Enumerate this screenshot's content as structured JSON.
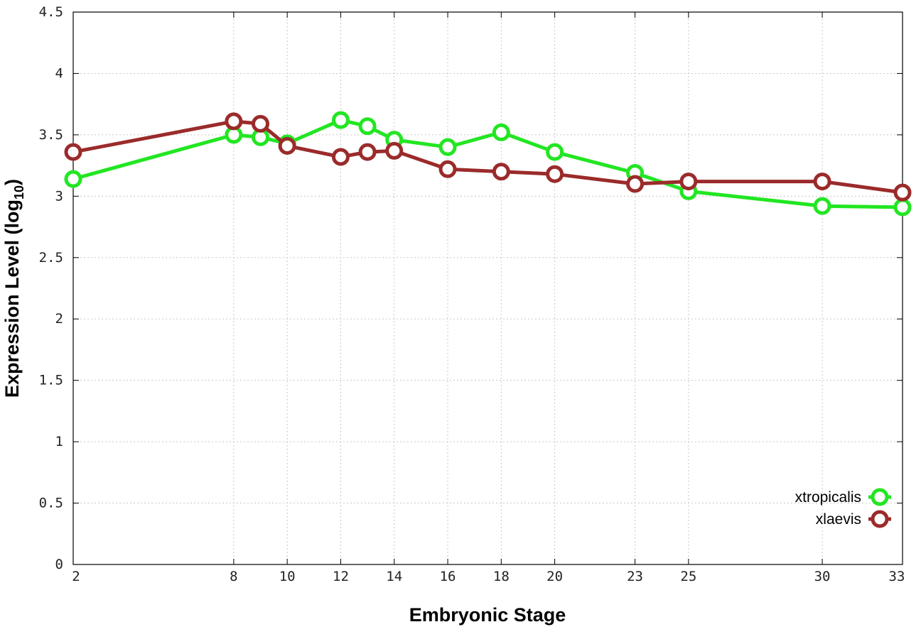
{
  "chart_data": {
    "type": "line",
    "title": "",
    "xlabel": "Embryonic Stage",
    "ylabel_main": "Expression Level (log",
    "ylabel_sub": "10",
    "ylabel_close": ")",
    "x": [
      2,
      8,
      9,
      10,
      12,
      13,
      14,
      16,
      18,
      20,
      23,
      25,
      30,
      33
    ],
    "xticks": [
      2,
      8,
      10,
      12,
      14,
      16,
      18,
      20,
      23,
      25,
      30,
      33
    ],
    "yticks": [
      "0",
      "0.5",
      "1",
      "1.5",
      "2",
      "2.5",
      "3",
      "3.5",
      "4",
      "4.5"
    ],
    "xlim": [
      2,
      33
    ],
    "ylim": [
      0,
      4.5
    ],
    "grid": true,
    "legend_position": "bottom-right",
    "series": [
      {
        "name": "xtropicalis",
        "color": "#22e622",
        "values": [
          3.14,
          3.5,
          3.48,
          3.43,
          3.62,
          3.57,
          3.46,
          3.4,
          3.52,
          3.36,
          3.19,
          3.04,
          2.92,
          2.91
        ]
      },
      {
        "name": "xlaevis",
        "color": "#9b2b2b",
        "values": [
          3.36,
          3.61,
          3.59,
          3.41,
          3.32,
          3.36,
          3.37,
          3.22,
          3.2,
          3.18,
          3.1,
          3.12,
          3.12,
          3.03
        ]
      }
    ]
  }
}
